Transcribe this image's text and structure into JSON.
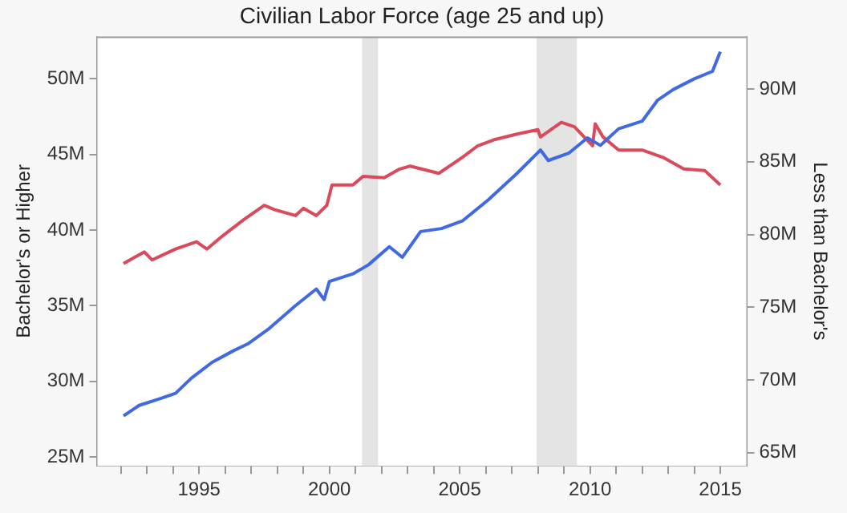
{
  "chart_data": {
    "type": "line",
    "title": "Civilian Labor Force (age 25 and up)",
    "ylabel": "Bachelor's or Higher",
    "y2label": "Less than Bachelor's",
    "xlim": [
      1991.1,
      2016
    ],
    "xticks": [
      {
        "value": 1992,
        "label": null
      },
      {
        "value": 1993,
        "label": null
      },
      {
        "value": 1994,
        "label": null
      },
      1995,
      {
        "value": 1996,
        "label": null
      },
      {
        "value": 1997,
        "label": null
      },
      {
        "value": 1998,
        "label": null
      },
      {
        "value": 1999,
        "label": null
      },
      2000,
      {
        "value": 2001,
        "label": null
      },
      {
        "value": 2002,
        "label": null
      },
      {
        "value": 2003,
        "label": null
      },
      {
        "value": 2004,
        "label": null
      },
      2005,
      {
        "value": 2006,
        "label": null
      },
      {
        "value": 2007,
        "label": null
      },
      {
        "value": 2008,
        "label": null
      },
      {
        "value": 2009,
        "label": null
      },
      2010,
      {
        "value": 2011,
        "label": null
      },
      {
        "value": 2012,
        "label": null
      },
      {
        "value": 2013,
        "label": null
      },
      {
        "value": 2014,
        "label": null
      },
      2015
    ],
    "ylim": [
      24.4,
      52.8
    ],
    "yticks": [
      {
        "value": 25,
        "label": "25M"
      },
      {
        "value": 30,
        "label": "30M"
      },
      {
        "value": 35,
        "label": "35M"
      },
      {
        "value": 40,
        "label": "40M"
      },
      {
        "value": 45,
        "label": "45M"
      },
      {
        "value": 50,
        "label": "50M"
      }
    ],
    "y2lim": [
      64.1,
      93.6
    ],
    "y2ticks": [
      {
        "value": 65,
        "label": "65M"
      },
      {
        "value": 70,
        "label": "70M"
      },
      {
        "value": 75,
        "label": "75M"
      },
      {
        "value": 80,
        "label": "80M"
      },
      {
        "value": 85,
        "label": "85M"
      },
      {
        "value": 90,
        "label": "90M"
      }
    ],
    "grid": false,
    "legend": false,
    "marker": "none",
    "line_style": "solid",
    "bands": [
      {
        "axis": "x",
        "from": 2001.25,
        "to": 2001.87,
        "color": "#e4e4e4"
      },
      {
        "axis": "x",
        "from": 2007.95,
        "to": 2009.5,
        "color": "#e4e4e4"
      }
    ],
    "series": [
      {
        "color": "#4169e1",
        "x": [
          1992.1,
          1992.7,
          1993.5,
          1994.1,
          1994.7,
          1995.5,
          1996.3,
          1996.9,
          1997.7,
          1998.7,
          1999.5,
          1999.8,
          2000.0,
          2000.9,
          2001.5,
          2002.3,
          2002.8,
          2003.5,
          2004.3,
          2005.1,
          2006.1,
          2007.2,
          2008.1,
          2008.4,
          2009.2,
          2009.9,
          2010.4,
          2011.1,
          2012.0,
          2012.6,
          2013.2,
          2014.0,
          2014.7,
          2015.0
        ],
        "values": [
          27.7,
          28.4,
          28.85,
          29.2,
          30.2,
          31.25,
          32.0,
          32.5,
          33.5,
          35.0,
          36.1,
          35.4,
          36.6,
          37.1,
          37.7,
          38.9,
          38.2,
          39.9,
          40.1,
          40.6,
          42.0,
          43.75,
          45.3,
          44.6,
          45.1,
          46.1,
          45.6,
          46.7,
          47.2,
          48.6,
          49.3,
          50.0,
          50.5,
          51.8
        ]
      },
      {
        "color": "#d94a5a",
        "axis": "y2",
        "x": [
          1992.1,
          1992.9,
          1993.2,
          1994.1,
          1994.9,
          1995.3,
          1995.9,
          1996.7,
          1997.5,
          1997.9,
          1998.7,
          1999.0,
          1999.5,
          1999.9,
          2000.1,
          2000.9,
          2001.3,
          2002.1,
          2002.7,
          2003.1,
          2004.2,
          2005.1,
          2005.7,
          2006.3,
          2007.2,
          2008.0,
          2008.1,
          2008.9,
          2009.4,
          2010.1,
          2010.2,
          2010.5,
          2011.1,
          2012.0,
          2012.8,
          2013.6,
          2014.4,
          2015.0
        ],
        "values": [
          78.0,
          78.8,
          78.25,
          79.0,
          79.5,
          79.0,
          79.9,
          81.0,
          82.0,
          81.7,
          81.3,
          81.8,
          81.3,
          82.0,
          83.4,
          83.4,
          84.0,
          83.9,
          84.5,
          84.7,
          84.2,
          85.3,
          86.1,
          86.5,
          86.9,
          87.2,
          86.7,
          87.7,
          87.4,
          86.1,
          87.6,
          86.7,
          85.8,
          85.8,
          85.3,
          84.5,
          84.4,
          83.4
        ]
      }
    ]
  }
}
